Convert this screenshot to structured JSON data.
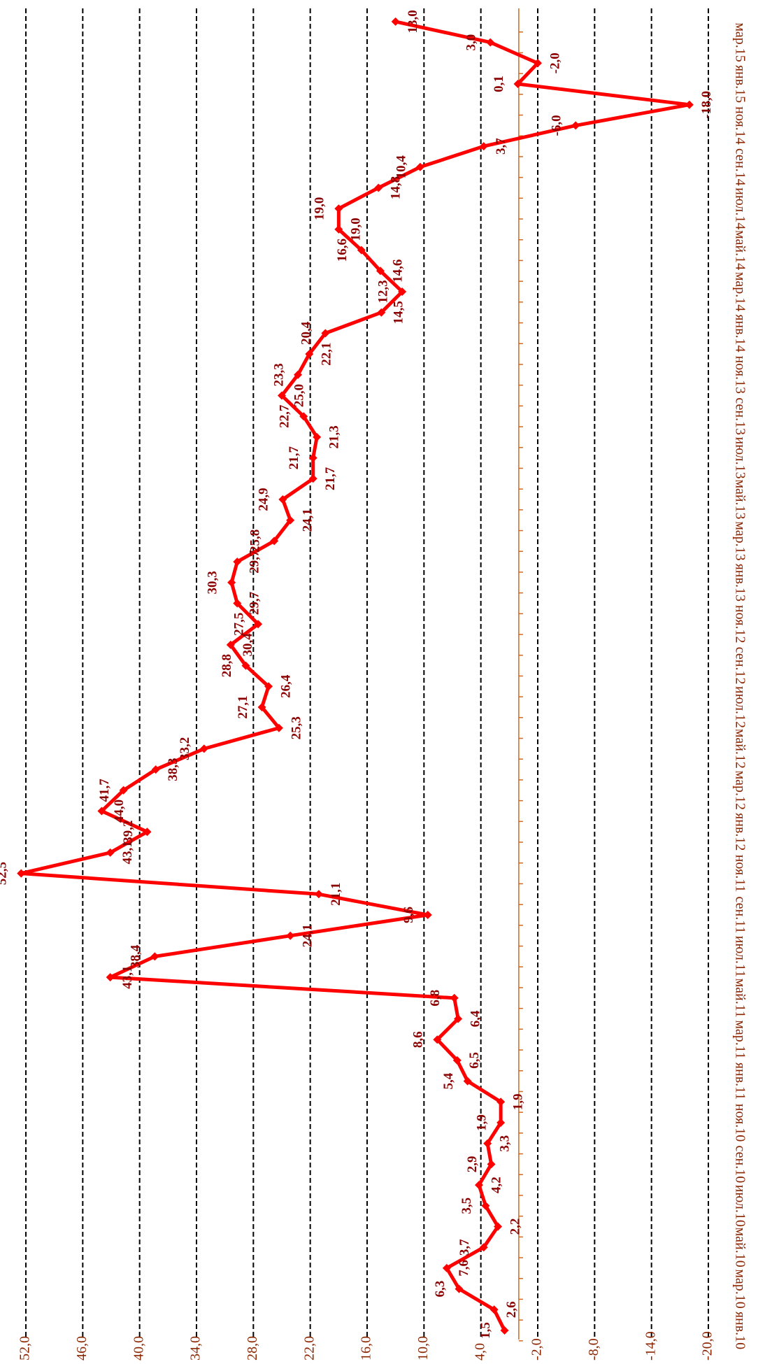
{
  "chart_data": {
    "type": "line",
    "orientation": "vertical",
    "color": "#ff0000",
    "grid": true,
    "categories": [
      "янв.10",
      null,
      "мар.10",
      null,
      "май.10",
      null,
      "июл.10",
      null,
      "сен.10",
      null,
      "ноя.10",
      null,
      "янв.11",
      null,
      "мар.11",
      null,
      "май.11",
      null,
      "июл.11",
      null,
      "сен.11",
      null,
      "ноя.11",
      null,
      "янв.12",
      null,
      "мар.12",
      null,
      "май.12",
      null,
      "июл.12",
      null,
      "сен.12",
      null,
      "ноя.12",
      null,
      "янв.13",
      null,
      "мар.13",
      null,
      "май.13",
      null,
      "июл.13",
      null,
      "сен.13",
      null,
      "ноя.13",
      null,
      "янв.14",
      null,
      "мар.14",
      null,
      "май.14",
      null,
      "июл.14",
      null,
      "сен.14",
      null,
      "ноя.14",
      null,
      "янв.15",
      null,
      "мар.15",
      null
    ],
    "values": [
      1.5,
      2.6,
      6.3,
      7.6,
      3.7,
      2.2,
      3.5,
      4.2,
      2.9,
      3.3,
      1.9,
      1.9,
      5.4,
      6.5,
      8.6,
      6.4,
      6.8,
      43.1,
      38.4,
      24.1,
      9.6,
      21.1,
      52.5,
      43.1,
      39.2,
      44.0,
      41.7,
      38.3,
      33.2,
      25.3,
      27.1,
      26.4,
      28.8,
      30.4,
      27.5,
      29.7,
      30.3,
      29.7,
      25.8,
      24.1,
      24.9,
      21.7,
      21.7,
      21.3,
      22.7,
      25.0,
      23.3,
      22.1,
      20.4,
      14.5,
      12.3,
      14.6,
      16.6,
      19.0,
      19.0,
      14.8,
      10.4,
      3.7,
      -6.0,
      -18.0,
      0.1,
      -2.0,
      3.0,
      13.0
    ],
    "value_labels": [
      "1,5",
      "2,6",
      "6,3",
      "7,6",
      "3,7",
      "2,2",
      "3,5",
      "4,2",
      "2,9",
      "3,3",
      "1,9",
      "1,9",
      "5,4",
      "6,5",
      "8,6",
      "6,4",
      "6,8",
      "43,1",
      "38,4",
      "24,1",
      "9,6",
      "21,1",
      "52,5",
      "43,1",
      "39,2",
      "44,0",
      "41,7",
      "38,3",
      "33,2",
      "25,3",
      "27,1",
      "26,4",
      "28,8",
      "30,4",
      "27,5",
      "29,7",
      "30,3",
      "29,7",
      "25,8",
      "24,1",
      "24,9",
      "21,7",
      "21,7",
      "21,3",
      "22,7",
      "25,0",
      "23,3",
      "22,1",
      "20,4",
      "14,5",
      "12,3",
      "14,6",
      "16,6",
      "19,0",
      "19,0",
      "14,8",
      "10,4",
      "3,7",
      "-6,0",
      "-18,0",
      "0,1",
      "-2,0",
      "3,0",
      "13,0"
    ],
    "ylim": [
      52,
      -20
    ],
    "yticks": [
      {
        "value": 52,
        "label": "52,0"
      },
      {
        "value": 46,
        "label": "46,0"
      },
      {
        "value": 40,
        "label": "40,0"
      },
      {
        "value": 34,
        "label": "34,0"
      },
      {
        "value": 28,
        "label": "28,0"
      },
      {
        "value": 22,
        "label": "22,0"
      },
      {
        "value": 16,
        "label": "16,0"
      },
      {
        "value": 10,
        "label": "10,0"
      },
      {
        "value": 4,
        "label": "4,0"
      },
      {
        "value": -2,
        "label": "-2,0"
      },
      {
        "value": -8,
        "label": "-8,0"
      },
      {
        "value": -14,
        "label": "-14,0"
      },
      {
        "value": -20,
        "label": "-20,0"
      }
    ]
  }
}
